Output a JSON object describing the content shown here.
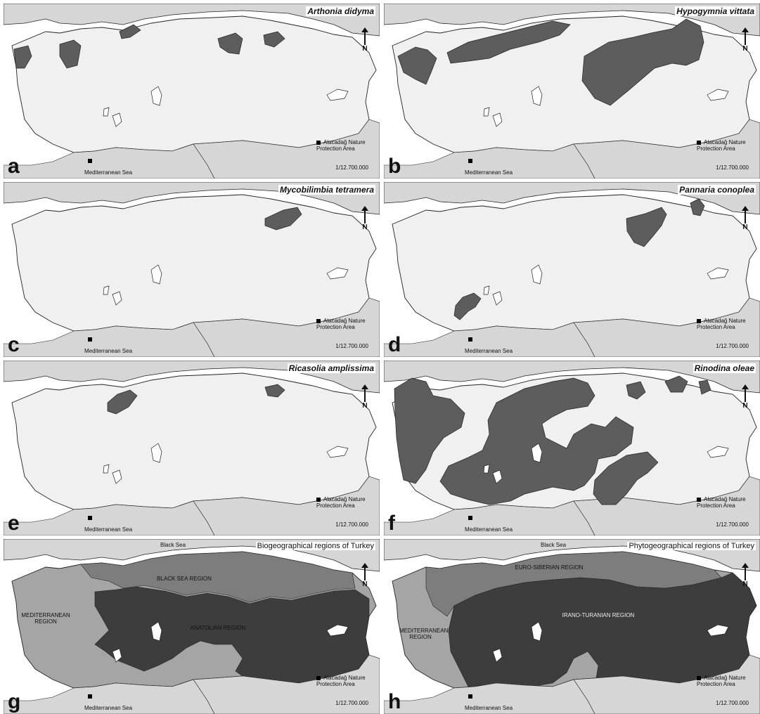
{
  "colors": {
    "land": "#f0f0f0",
    "sea": "#d6d6d6",
    "outside": "#ffffff",
    "distribution": "#5d5d5d",
    "border": "#222222"
  },
  "common": {
    "north_label": "N",
    "legend_label": "Alacadağ Nature Protection Area",
    "scale": "1/12.700.000",
    "sea_label": "Mediterranean Sea",
    "black_sea_label": "Black Sea"
  },
  "panels": [
    {
      "letter": "a",
      "title": "Arthonia didyma"
    },
    {
      "letter": "b",
      "title": "Hypogymnia vittata"
    },
    {
      "letter": "c",
      "title": "Mycobilimbia tetramera"
    },
    {
      "letter": "d",
      "title": "Pannaria conoplea"
    },
    {
      "letter": "e",
      "title": "Ricasolia amplissima"
    },
    {
      "letter": "f",
      "title": "Rinodina oleae"
    },
    {
      "letter": "g",
      "title": "Biogeographical regions of Turkey",
      "regions": [
        "BLACK SEA REGION",
        "MEDITERRANEAN REGION",
        "ANATOLIAN REGION"
      ]
    },
    {
      "letter": "h",
      "title": "Phytogeographical regions of Turkey",
      "regions": [
        "EURO-SIBERIAN REGION",
        "MEDITERRANEAN REGION",
        "IRANO-TURANIAN REGION"
      ]
    }
  ]
}
